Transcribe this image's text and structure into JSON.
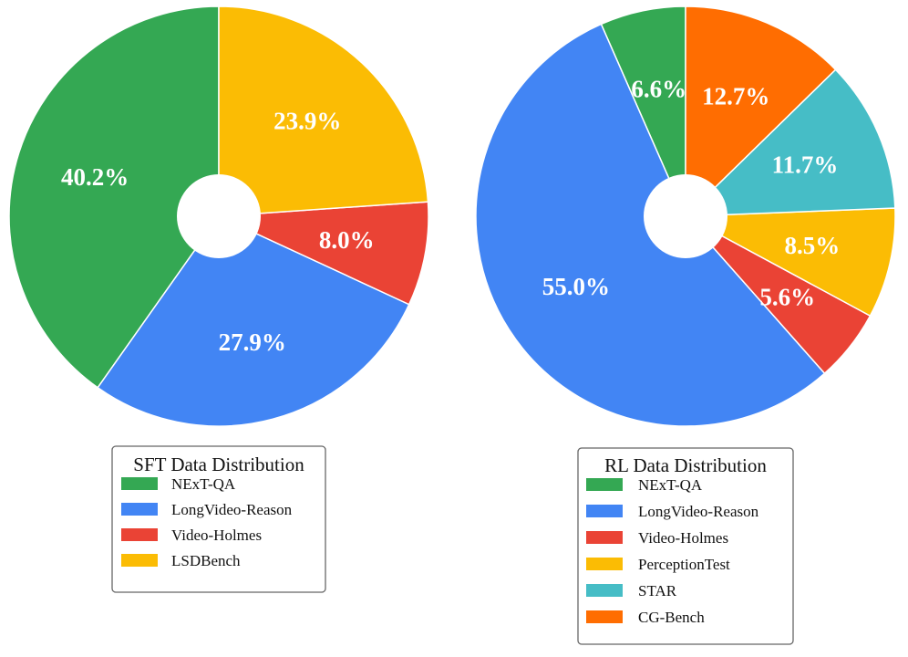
{
  "chart_data": [
    {
      "type": "pie",
      "title": "SFT Data Distribution",
      "categories": [
        "NExT-QA",
        "LongVideo-Reason",
        "Video-Holmes",
        "LSDBench"
      ],
      "values": [
        40.2,
        27.9,
        8.0,
        23.9
      ],
      "labels": [
        "40.2%",
        "27.9%",
        "8.0%",
        "23.9%"
      ],
      "colors": [
        "#34a853",
        "#4285f4",
        "#ea4335",
        "#fbbc04"
      ],
      "legend_position": "bottom"
    },
    {
      "type": "pie",
      "title": "RL Data Distribution",
      "categories": [
        "NExT-QA",
        "LongVideo-Reason",
        "Video-Holmes",
        "PerceptionTest",
        "STAR",
        "CG-Bench"
      ],
      "values": [
        6.6,
        55.0,
        5.6,
        8.5,
        11.7,
        12.7
      ],
      "labels": [
        "6.6%",
        "55.0%",
        "5.6%",
        "8.5%",
        "11.7%",
        "12.7%"
      ],
      "colors": [
        "#34a853",
        "#4285f4",
        "#ea4335",
        "#fbbc04",
        "#46bdc6",
        "#ff6d01"
      ],
      "legend_position": "bottom"
    }
  ]
}
